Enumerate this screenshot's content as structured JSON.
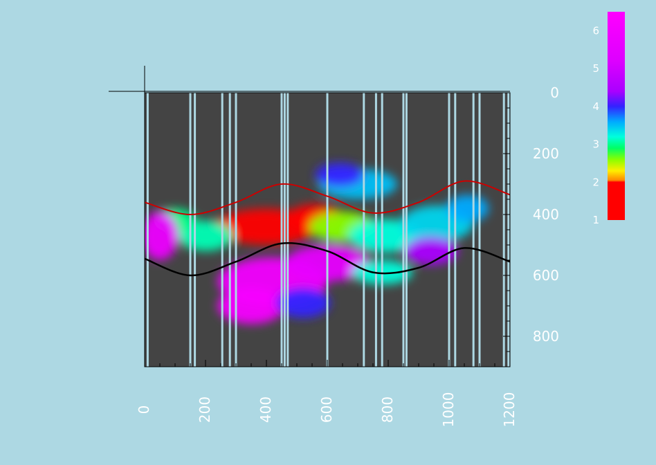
{
  "chart_data": {
    "type": "heatmap",
    "title": "",
    "xlabel": "",
    "ylabel": "",
    "xlim": [
      0,
      1200
    ],
    "ylim": [
      0,
      900
    ],
    "y_inverted": true,
    "x_ticks": [
      {
        "value": 0,
        "label": "0"
      },
      {
        "value": 200,
        "label": "200"
      },
      {
        "value": 400,
        "label": "400"
      },
      {
        "value": 600,
        "label": "600"
      },
      {
        "value": 800,
        "label": "800"
      },
      {
        "value": 1000,
        "label": "1000"
      },
      {
        "value": 1200,
        "label": "1200"
      }
    ],
    "y_ticks": [
      {
        "value": 0,
        "label": "0"
      },
      {
        "value": 200,
        "label": "200"
      },
      {
        "value": 400,
        "label": "400"
      },
      {
        "value": 600,
        "label": "600"
      },
      {
        "value": 800,
        "label": "800"
      }
    ],
    "colorbar": {
      "min": 1,
      "max": 6.5,
      "ticks": [
        {
          "value": 1,
          "label": "1"
        },
        {
          "value": 2,
          "label": "2"
        },
        {
          "value": 3,
          "label": "3"
        },
        {
          "value": 4,
          "label": "4"
        },
        {
          "value": 5,
          "label": "5"
        },
        {
          "value": 6,
          "label": "6"
        }
      ],
      "stops": [
        {
          "value": 1.0,
          "color": "#ff0000"
        },
        {
          "value": 2.0,
          "color": "#ff0000"
        },
        {
          "value": 2.05,
          "color": "#ff8800"
        },
        {
          "value": 2.3,
          "color": "#ffee00"
        },
        {
          "value": 2.6,
          "color": "#88ff00"
        },
        {
          "value": 2.9,
          "color": "#00ff66"
        },
        {
          "value": 3.2,
          "color": "#00ffdd"
        },
        {
          "value": 3.6,
          "color": "#00aaff"
        },
        {
          "value": 4.0,
          "color": "#3322ff"
        },
        {
          "value": 4.4,
          "color": "#aa00ff"
        },
        {
          "value": 5.2,
          "color": "#dd00ff"
        },
        {
          "value": 6.5,
          "color": "#ff00ff"
        }
      ]
    },
    "boundaries": {
      "upper": {
        "color": "#cc0000",
        "x": [
          0,
          150,
          300,
          450,
          600,
          750,
          900,
          1050,
          1200
        ],
        "y": [
          360,
          400,
          360,
          300,
          340,
          395,
          360,
          290,
          335
        ]
      },
      "lower": {
        "color": "#000000",
        "x": [
          0,
          150,
          300,
          450,
          600,
          750,
          900,
          1050,
          1200
        ],
        "y": [
          545,
          600,
          555,
          495,
          520,
          590,
          575,
          510,
          555
        ]
      }
    },
    "stripes_x": [
      10,
      150,
      165,
      255,
      280,
      300,
      450,
      460,
      470,
      600,
      720,
      760,
      780,
      850,
      860,
      1000,
      1020,
      1080,
      1100,
      1180,
      1195
    ],
    "background_color": "#444444",
    "fields": [
      {
        "x": 400,
        "y": 440,
        "rx": 170,
        "ry": 60,
        "value": 1.3
      },
      {
        "x": 560,
        "y": 410,
        "rx": 90,
        "ry": 45,
        "value": 1.5
      },
      {
        "x": 200,
        "y": 470,
        "rx": 90,
        "ry": 50,
        "value": 3.1
      },
      {
        "x": 100,
        "y": 420,
        "rx": 70,
        "ry": 40,
        "value": 3.0
      },
      {
        "x": 650,
        "y": 440,
        "rx": 110,
        "ry": 50,
        "value": 2.6
      },
      {
        "x": 790,
        "y": 470,
        "rx": 120,
        "ry": 55,
        "value": 3.2
      },
      {
        "x": 960,
        "y": 430,
        "rx": 120,
        "ry": 60,
        "value": 3.4
      },
      {
        "x": 1060,
        "y": 380,
        "rx": 70,
        "ry": 45,
        "value": 3.6
      },
      {
        "x": 700,
        "y": 300,
        "rx": 130,
        "ry": 50,
        "value": 3.5
      },
      {
        "x": 640,
        "y": 270,
        "rx": 80,
        "ry": 40,
        "value": 4.0
      },
      {
        "x": 50,
        "y": 470,
        "rx": 60,
        "ry": 80,
        "value": 5.8
      },
      {
        "x": 420,
        "y": 620,
        "rx": 180,
        "ry": 80,
        "value": 6.0
      },
      {
        "x": 600,
        "y": 560,
        "rx": 140,
        "ry": 60,
        "value": 5.6
      },
      {
        "x": 350,
        "y": 700,
        "rx": 110,
        "ry": 60,
        "value": 6.2
      },
      {
        "x": 520,
        "y": 690,
        "rx": 90,
        "ry": 50,
        "value": 4.0
      },
      {
        "x": 780,
        "y": 590,
        "rx": 100,
        "ry": 40,
        "value": 3.2
      },
      {
        "x": 940,
        "y": 520,
        "rx": 90,
        "ry": 45,
        "value": 4.4
      }
    ]
  }
}
